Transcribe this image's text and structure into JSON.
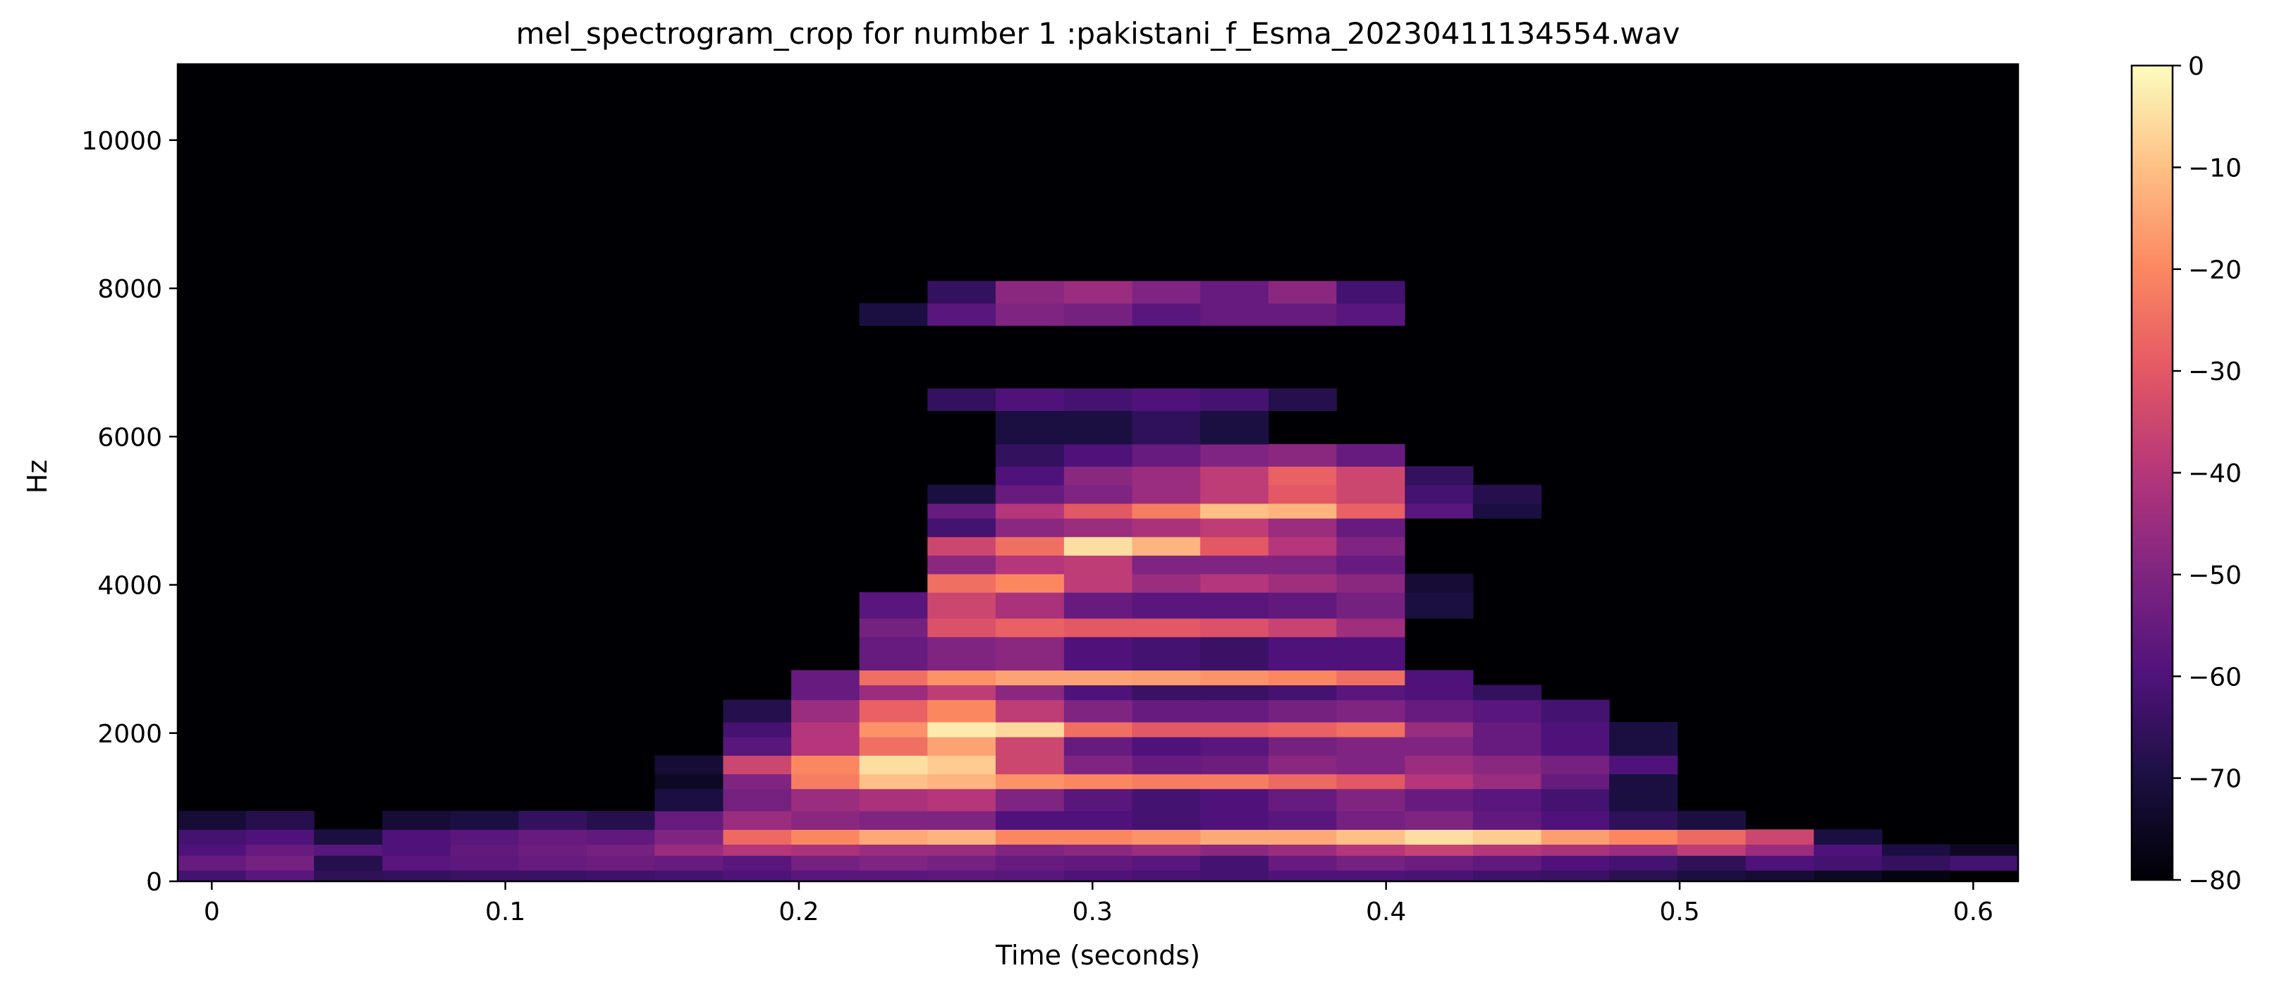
{
  "chart_data": {
    "type": "heatmap",
    "title": "mel_spectrogram_crop for number 1 :pakistani_f_Esma_20230411134554.wav",
    "xlabel": "Time (seconds)",
    "ylabel": "Hz",
    "xlim": [
      -0.0116,
      0.6153
    ],
    "ylim": [
      0,
      11025
    ],
    "x_ticks": [
      0,
      0.1,
      0.2,
      0.3,
      0.4,
      0.5,
      0.6
    ],
    "x_tick_labels": [
      "0",
      "0.1",
      "0.2",
      "0.3",
      "0.4",
      "0.5",
      "0.6"
    ],
    "y_ticks": [
      0,
      2000,
      4000,
      6000,
      8000,
      10000
    ],
    "y_tick_labels": [
      "0",
      "2000",
      "4000",
      "6000",
      "8000",
      "10000"
    ],
    "colormap": "magma",
    "colorbar": {
      "range": [
        -80,
        0
      ],
      "ticks": [
        0,
        -10,
        -20,
        -30,
        -40,
        -50,
        -60,
        -70,
        -80
      ],
      "tick_labels": [
        "0",
        "−10",
        "−20",
        "−30",
        "−40",
        "−50",
        "−60",
        "−70",
        "−80"
      ]
    },
    "grid": false,
    "frame_times": [
      0,
      0.0232,
      0.0464,
      0.0697,
      0.0929,
      0.1161,
      0.1393,
      0.1625,
      0.1858,
      0.209,
      0.2322,
      0.2554,
      0.2786,
      0.3019,
      0.3251,
      0.3483,
      0.3715,
      0.3947,
      0.418,
      0.4412,
      0.4644,
      0.4876,
      0.5108,
      0.5341,
      0.5573,
      0.5805,
      0.6037
    ],
    "energy_bands": [
      {
        "hz": [
          0,
          150
        ],
        "db": [
          -62,
          -58,
          -66,
          -65,
          -64,
          -64,
          -63,
          -62,
          -60,
          -58,
          -58,
          -57,
          -58,
          -60,
          -61,
          -62,
          -60,
          -60,
          -61,
          -63,
          -64,
          -67,
          -70,
          -72,
          -75,
          -78,
          -80
        ]
      },
      {
        "hz": [
          150,
          350
        ],
        "db": [
          -55,
          -52,
          -68,
          -58,
          -57,
          -55,
          -54,
          -55,
          -58,
          -52,
          -50,
          -52,
          -55,
          -56,
          -58,
          -62,
          -55,
          -52,
          -54,
          -56,
          -60,
          -62,
          -66,
          -60,
          -62,
          -65,
          -62
        ]
      },
      {
        "hz": [
          350,
          500
        ],
        "db": [
          -60,
          -55,
          -58,
          -60,
          -56,
          -54,
          -52,
          -45,
          -40,
          -42,
          -45,
          -45,
          -50,
          -48,
          -45,
          -48,
          -45,
          -40,
          -36,
          -40,
          -42,
          -45,
          -38,
          -45,
          -60,
          -70,
          -75
        ]
      },
      {
        "hz": [
          500,
          700
        ],
        "db": [
          -62,
          -60,
          -70,
          -60,
          -58,
          -55,
          -56,
          -50,
          -26,
          -20,
          -14,
          -12,
          -20,
          -20,
          -18,
          -14,
          -14,
          -10,
          -5,
          -8,
          -16,
          -20,
          -26,
          -35,
          -70,
          -80,
          -80
        ]
      },
      {
        "hz": [
          700,
          950
        ],
        "db": [
          -72,
          -68,
          -80,
          -72,
          -70,
          -65,
          -68,
          -55,
          -45,
          -48,
          -50,
          -50,
          -60,
          -60,
          -62,
          -60,
          -58,
          -52,
          -50,
          -56,
          -60,
          -66,
          -70,
          -80,
          -80,
          -80,
          -80
        ]
      },
      {
        "hz": [
          950,
          1250
        ],
        "db": [
          -80,
          -80,
          -80,
          -80,
          -80,
          -80,
          -80,
          -70,
          -52,
          -45,
          -42,
          -40,
          -50,
          -58,
          -62,
          -60,
          -55,
          -50,
          -55,
          -58,
          -62,
          -70,
          -80,
          -80,
          -80,
          -80,
          -80
        ]
      },
      {
        "hz": [
          1250,
          1450
        ],
        "db": [
          -80,
          -80,
          -80,
          -80,
          -80,
          -80,
          -80,
          -75,
          -50,
          -22,
          -10,
          -12,
          -18,
          -20,
          -22,
          -22,
          -26,
          -30,
          -40,
          -45,
          -55,
          -70,
          -80,
          -80,
          -80,
          -80,
          -80
        ]
      },
      {
        "hz": [
          1450,
          1700
        ],
        "db": [
          -80,
          -80,
          -80,
          -80,
          -80,
          -80,
          -80,
          -72,
          -35,
          -20,
          -5,
          -8,
          -35,
          -50,
          -55,
          -54,
          -48,
          -50,
          -45,
          -48,
          -52,
          -60,
          -80,
          -80,
          -80,
          -80,
          -80
        ]
      },
      {
        "hz": [
          1700,
          1950
        ],
        "db": [
          -80,
          -80,
          -80,
          -80,
          -80,
          -80,
          -80,
          -80,
          -58,
          -40,
          -25,
          -15,
          -35,
          -55,
          -60,
          -58,
          -52,
          -50,
          -50,
          -55,
          -60,
          -70,
          -80,
          -80,
          -80,
          -80,
          -80
        ]
      },
      {
        "hz": [
          1950,
          2150
        ],
        "db": [
          -80,
          -80,
          -80,
          -80,
          -80,
          -80,
          -80,
          -80,
          -62,
          -40,
          -18,
          -3,
          -6,
          -25,
          -30,
          -30,
          -28,
          -25,
          -45,
          -55,
          -60,
          -70,
          -80,
          -80,
          -80,
          -80,
          -80
        ]
      },
      {
        "hz": [
          2150,
          2450
        ],
        "db": [
          -80,
          -80,
          -80,
          -80,
          -80,
          -80,
          -80,
          -80,
          -68,
          -45,
          -28,
          -20,
          -38,
          -50,
          -55,
          -55,
          -52,
          -50,
          -55,
          -58,
          -62,
          -80,
          -80,
          -80,
          -80,
          -80,
          -80
        ]
      },
      {
        "hz": [
          2450,
          2650
        ],
        "db": [
          -80,
          -80,
          -80,
          -80,
          -80,
          -80,
          -80,
          -80,
          -80,
          -55,
          -45,
          -38,
          -48,
          -60,
          -64,
          -64,
          -62,
          -58,
          -60,
          -65,
          -80,
          -80,
          -80,
          -80,
          -80,
          -80,
          -80
        ]
      },
      {
        "hz": [
          2650,
          2850
        ],
        "db": [
          -80,
          -80,
          -80,
          -80,
          -80,
          -80,
          -80,
          -80,
          -80,
          -55,
          -25,
          -18,
          -15,
          -15,
          -16,
          -18,
          -20,
          -25,
          -60,
          -80,
          -80,
          -80,
          -80,
          -80,
          -80,
          -80,
          -80
        ]
      },
      {
        "hz": [
          2850,
          3300
        ],
        "db": [
          -80,
          -80,
          -80,
          -80,
          -80,
          -80,
          -80,
          -80,
          -80,
          -80,
          -55,
          -50,
          -48,
          -60,
          -62,
          -64,
          -60,
          -60,
          -80,
          -80,
          -80,
          -80,
          -80,
          -80,
          -80,
          -80,
          -80
        ]
      },
      {
        "hz": [
          3300,
          3550
        ],
        "db": [
          -80,
          -80,
          -80,
          -80,
          -80,
          -80,
          -80,
          -80,
          -80,
          -80,
          -52,
          -32,
          -28,
          -30,
          -30,
          -32,
          -36,
          -44,
          -80,
          -80,
          -80,
          -80,
          -80,
          -80,
          -80,
          -80,
          -80
        ]
      },
      {
        "hz": [
          3550,
          3900
        ],
        "db": [
          -80,
          -80,
          -80,
          -80,
          -80,
          -80,
          -80,
          -80,
          -80,
          -80,
          -58,
          -35,
          -42,
          -55,
          -58,
          -58,
          -56,
          -52,
          -70,
          -80,
          -80,
          -80,
          -80,
          -80,
          -80,
          -80,
          -80
        ]
      },
      {
        "hz": [
          3900,
          4150
        ],
        "db": [
          -80,
          -80,
          -80,
          -80,
          -80,
          -80,
          -80,
          -80,
          -80,
          -80,
          -80,
          -25,
          -20,
          -38,
          -45,
          -40,
          -44,
          -48,
          -72,
          -80,
          -80,
          -80,
          -80,
          -80,
          -80,
          -80,
          -80
        ]
      },
      {
        "hz": [
          4150,
          4400
        ],
        "db": [
          -80,
          -80,
          -80,
          -80,
          -80,
          -80,
          -80,
          -80,
          -80,
          -80,
          -80,
          -48,
          -40,
          -38,
          -50,
          -50,
          -50,
          -55,
          -80,
          -80,
          -80,
          -80,
          -80,
          -80,
          -80,
          -80,
          -80
        ]
      },
      {
        "hz": [
          4400,
          4650
        ],
        "db": [
          -80,
          -80,
          -80,
          -80,
          -80,
          -80,
          -80,
          -80,
          -80,
          -80,
          -80,
          -35,
          -25,
          -5,
          -12,
          -30,
          -40,
          -50,
          -80,
          -80,
          -80,
          -80,
          -80,
          -80,
          -80,
          -80,
          -80
        ]
      },
      {
        "hz": [
          4650,
          4900
        ],
        "db": [
          -80,
          -80,
          -80,
          -80,
          -80,
          -80,
          -80,
          -80,
          -80,
          -80,
          -80,
          -62,
          -48,
          -45,
          -42,
          -38,
          -45,
          -55,
          -80,
          -80,
          -80,
          -80,
          -80,
          -80,
          -80,
          -80,
          -80
        ]
      },
      {
        "hz": [
          4900,
          5100
        ],
        "db": [
          -80,
          -80,
          -80,
          -80,
          -80,
          -80,
          -80,
          -80,
          -80,
          -80,
          -80,
          -55,
          -40,
          -30,
          -22,
          -10,
          -12,
          -28,
          -58,
          -70,
          -80,
          -80,
          -80,
          -80,
          -80,
          -80,
          -80
        ]
      },
      {
        "hz": [
          5100,
          5350
        ],
        "db": [
          -80,
          -80,
          -80,
          -80,
          -80,
          -80,
          -80,
          -80,
          -80,
          -80,
          -80,
          -70,
          -55,
          -50,
          -45,
          -38,
          -30,
          -35,
          -62,
          -68,
          -80,
          -80,
          -80,
          -80,
          -80,
          -80,
          -80
        ]
      },
      {
        "hz": [
          5350,
          5600
        ],
        "db": [
          -80,
          -80,
          -80,
          -80,
          -80,
          -80,
          -80,
          -80,
          -80,
          -80,
          -80,
          -80,
          -60,
          -48,
          -45,
          -38,
          -28,
          -35,
          -65,
          -80,
          -80,
          -80,
          -80,
          -80,
          -80,
          -80,
          -80
        ]
      },
      {
        "hz": [
          5600,
          5900
        ],
        "db": [
          -80,
          -80,
          -80,
          -80,
          -80,
          -80,
          -80,
          -80,
          -80,
          -80,
          -80,
          -80,
          -65,
          -60,
          -55,
          -50,
          -48,
          -55,
          -80,
          -80,
          -80,
          -80,
          -80,
          -80,
          -80,
          -80,
          -80
        ]
      },
      {
        "hz": [
          5900,
          6350
        ],
        "db": [
          -80,
          -80,
          -80,
          -80,
          -80,
          -80,
          -80,
          -80,
          -80,
          -80,
          -80,
          -80,
          -70,
          -70,
          -66,
          -70,
          -80,
          -80,
          -80,
          -80,
          -80,
          -80,
          -80,
          -80,
          -80,
          -80,
          -80
        ]
      },
      {
        "hz": [
          6350,
          6650
        ],
        "db": [
          -80,
          -80,
          -80,
          -80,
          -80,
          -80,
          -80,
          -80,
          -80,
          -80,
          -80,
          -65,
          -60,
          -62,
          -60,
          -62,
          -68,
          -80,
          -80,
          -80,
          -80,
          -80,
          -80,
          -80,
          -80,
          -80,
          -80
        ]
      },
      {
        "hz": [
          7500,
          7800
        ],
        "db": [
          -80,
          -80,
          -80,
          -80,
          -80,
          -80,
          -80,
          -80,
          -80,
          -80,
          -70,
          -58,
          -50,
          -52,
          -58,
          -55,
          -55,
          -58,
          -80,
          -80,
          -80,
          -80,
          -80,
          -80,
          -80,
          -80,
          -80
        ]
      },
      {
        "hz": [
          7800,
          8100
        ],
        "db": [
          -80,
          -80,
          -80,
          -80,
          -80,
          -80,
          -80,
          -80,
          -80,
          -80,
          -80,
          -65,
          -48,
          -45,
          -50,
          -55,
          -48,
          -62,
          -80,
          -80,
          -80,
          -80,
          -80,
          -80,
          -80,
          -80,
          -80
        ]
      }
    ]
  }
}
